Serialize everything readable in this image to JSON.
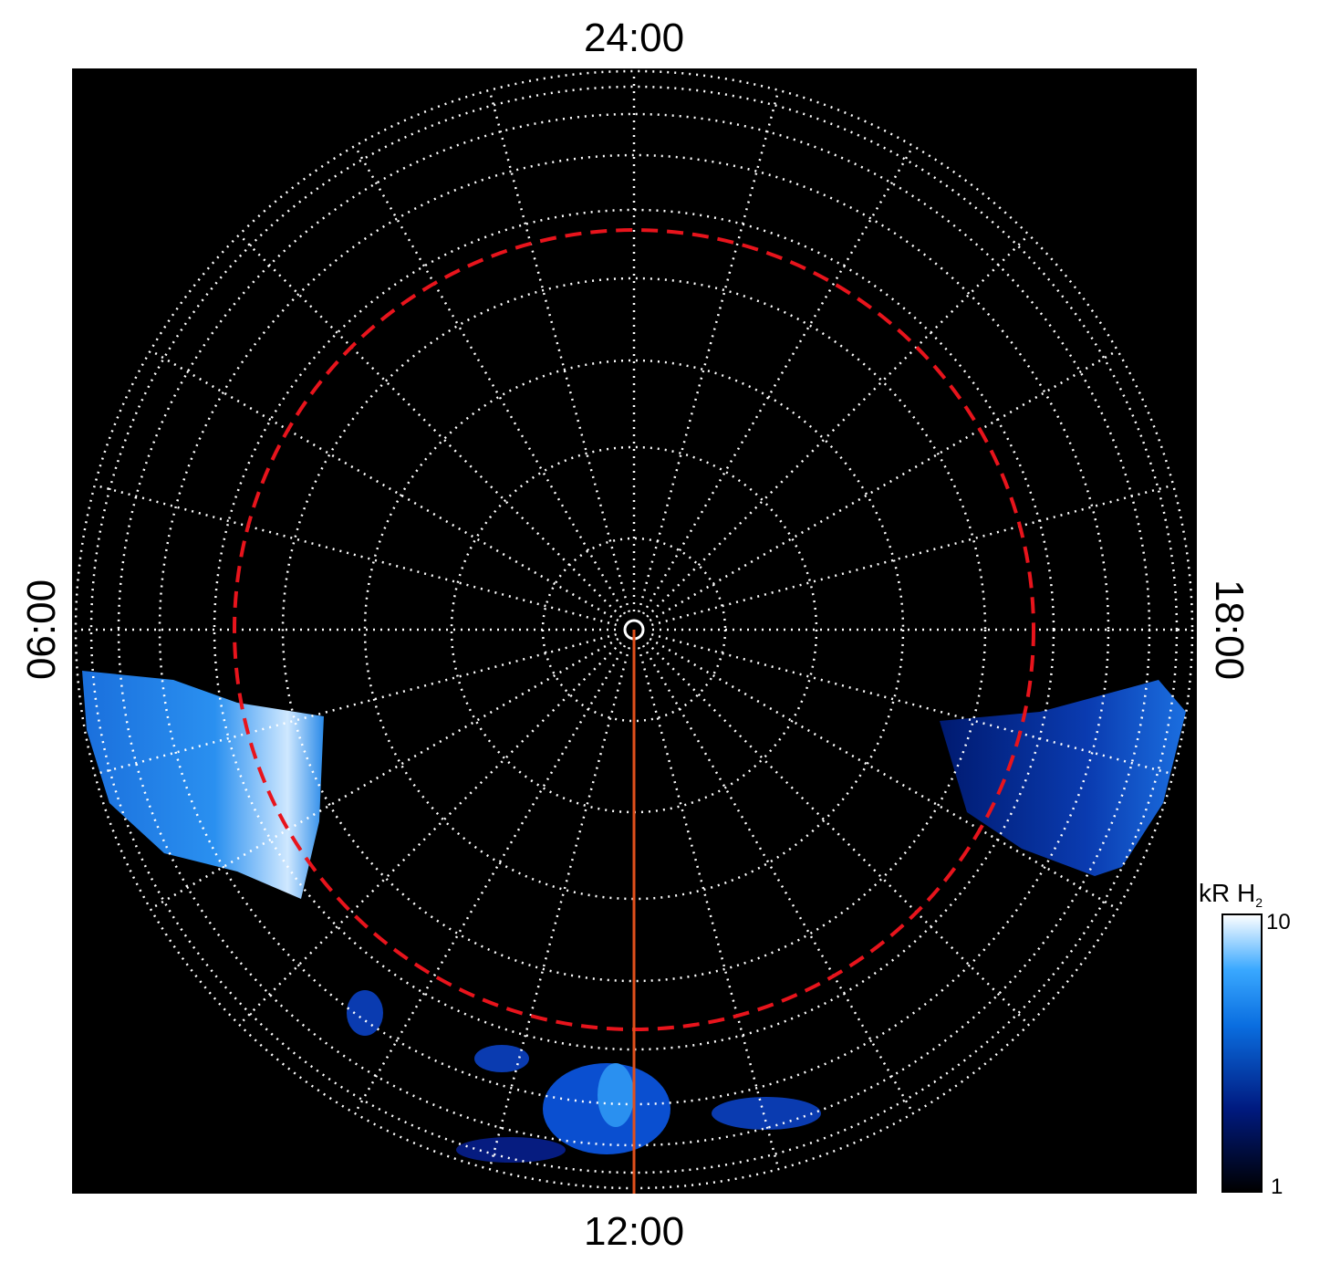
{
  "labels": {
    "top": "24:00",
    "bottom": "12:00",
    "left": "06:00",
    "right": "18:00"
  },
  "colorbar": {
    "title": "kR H",
    "title_subscript": "2",
    "ticks": [
      "10",
      "1"
    ]
  }
}
